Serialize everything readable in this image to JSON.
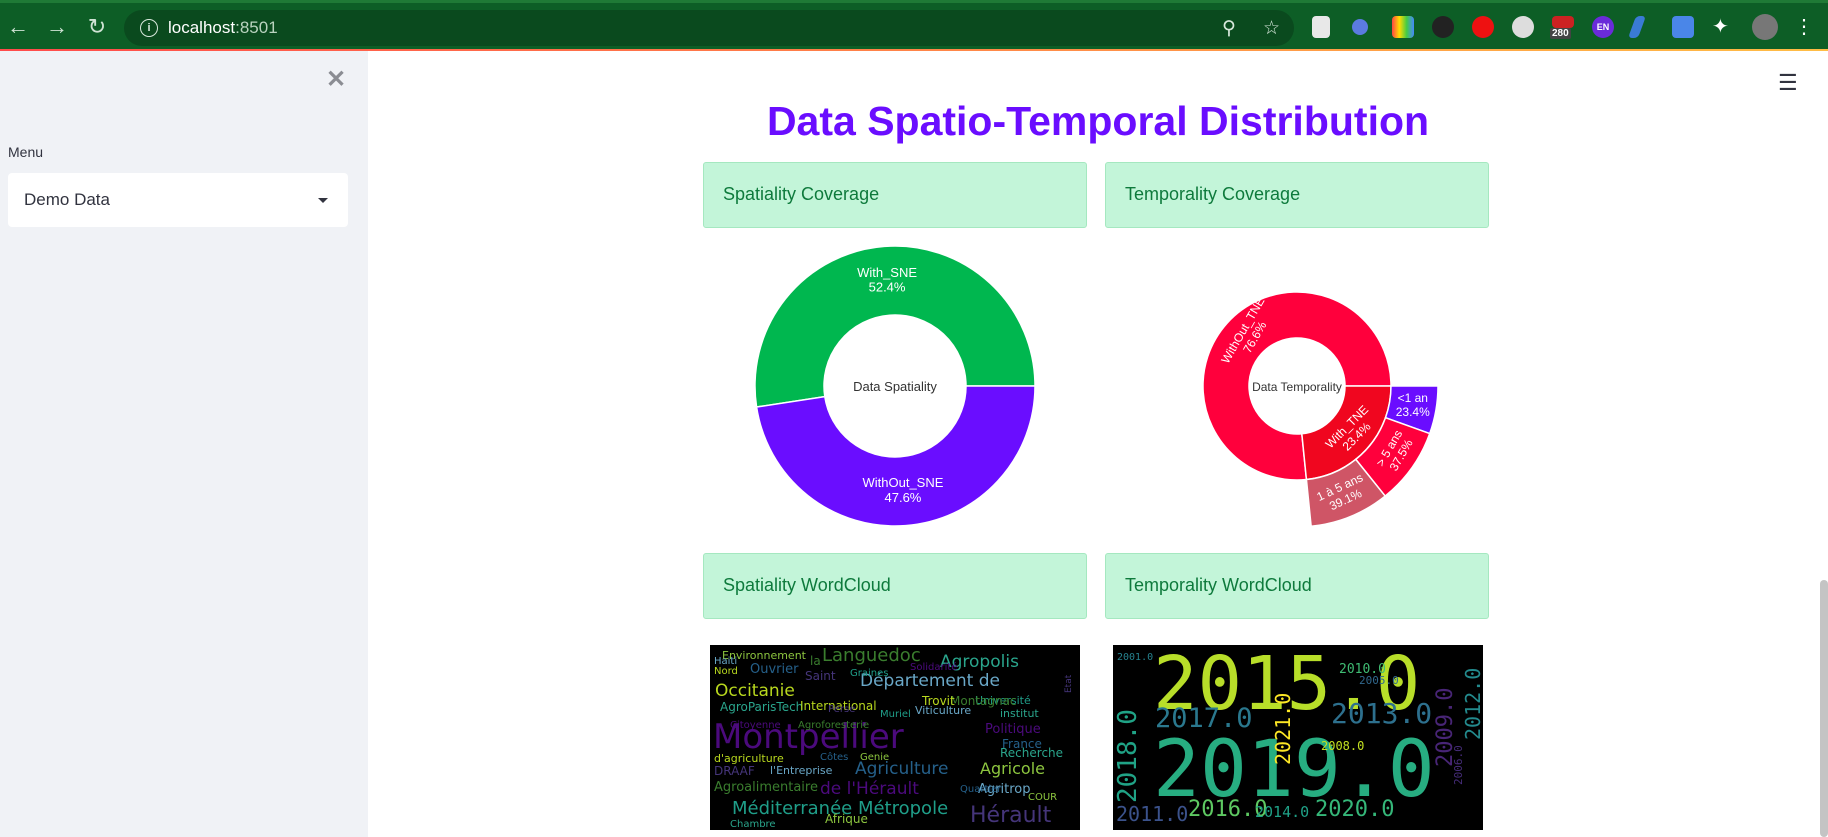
{
  "browser": {
    "url_host": "localhost",
    "url_port": ":8501",
    "ext_badge": "280",
    "ext_lang": "EN"
  },
  "sidebar": {
    "menu_label": "Menu",
    "selected": "Demo Data"
  },
  "main": {
    "title": "Data Spatio-Temporal Distribution",
    "sections": {
      "spatiality_coverage": "Spatiality Coverage",
      "temporality_coverage": "Temporality Coverage",
      "spatiality_wordcloud": "Spatiality WordCloud",
      "temporality_wordcloud": "Temporality WordCloud"
    }
  },
  "colors": {
    "green": "#00b74f",
    "purple": "#6a0dff",
    "red": "#ff003c",
    "red2": "#f0061f",
    "rose": "#cf5566"
  },
  "chart_data": [
    {
      "type": "pie",
      "title": "Data Spatiality",
      "labels": [
        "With_SNE",
        "WithOut_SNE"
      ],
      "percent_labels": [
        "52.4%",
        "47.6%"
      ],
      "values": [
        52.4,
        47.6
      ]
    },
    {
      "type": "sunburst",
      "title": "Data Temporality",
      "inner": {
        "labels": [
          "WithOut_TNE",
          "With_TNE"
        ],
        "percent_labels": [
          "76.6%",
          "23.4%"
        ],
        "values": [
          76.6,
          23.4
        ]
      },
      "outer": {
        "labels": [
          "<1 an",
          "> 5 ans",
          "1 à 5 ans"
        ],
        "percent_labels": [
          "23.4%",
          "37.5%",
          "39.1%"
        ],
        "values": [
          23.4,
          37.5,
          39.1
        ]
      }
    }
  ],
  "wordcloud_spatial": [
    "Montpellier",
    "Languedoc",
    "Agropolis",
    "Occitanie",
    "Département de",
    "Agriculture",
    "Agricole",
    "Hérault",
    "Méditerranée Métropole",
    "de l'Hérault",
    "Agroalimentaire",
    "AgroParisTech",
    "International",
    "Agritrop",
    "Ouvrier",
    "Environnement",
    "DRAAF",
    "Université",
    "Politique",
    "Montagnac",
    "Recherche",
    "Trovit",
    "Viticulture",
    "France",
    "Afrique",
    "Saint",
    "Graines",
    "Solidarité",
    "la",
    "institut",
    "d'agriculture",
    "l'Entreprise",
    "Côtes",
    "Genie",
    "Perse",
    "Muriel",
    "Citoyenne",
    "Agroforesterie",
    "Chambre",
    "Nord",
    "Haiti",
    "Quartier",
    "COUR",
    "Etat"
  ],
  "wordcloud_temporal": [
    "2015.0",
    "2019.0",
    "2017.0",
    "2013.0",
    "2018.0",
    "2016.0",
    "2020.0",
    "2011.0",
    "2014.0",
    "2012.0",
    "2009.0",
    "2021.0",
    "2010.0",
    "2008.0",
    "2005.0",
    "2006.0",
    "2001.0"
  ]
}
